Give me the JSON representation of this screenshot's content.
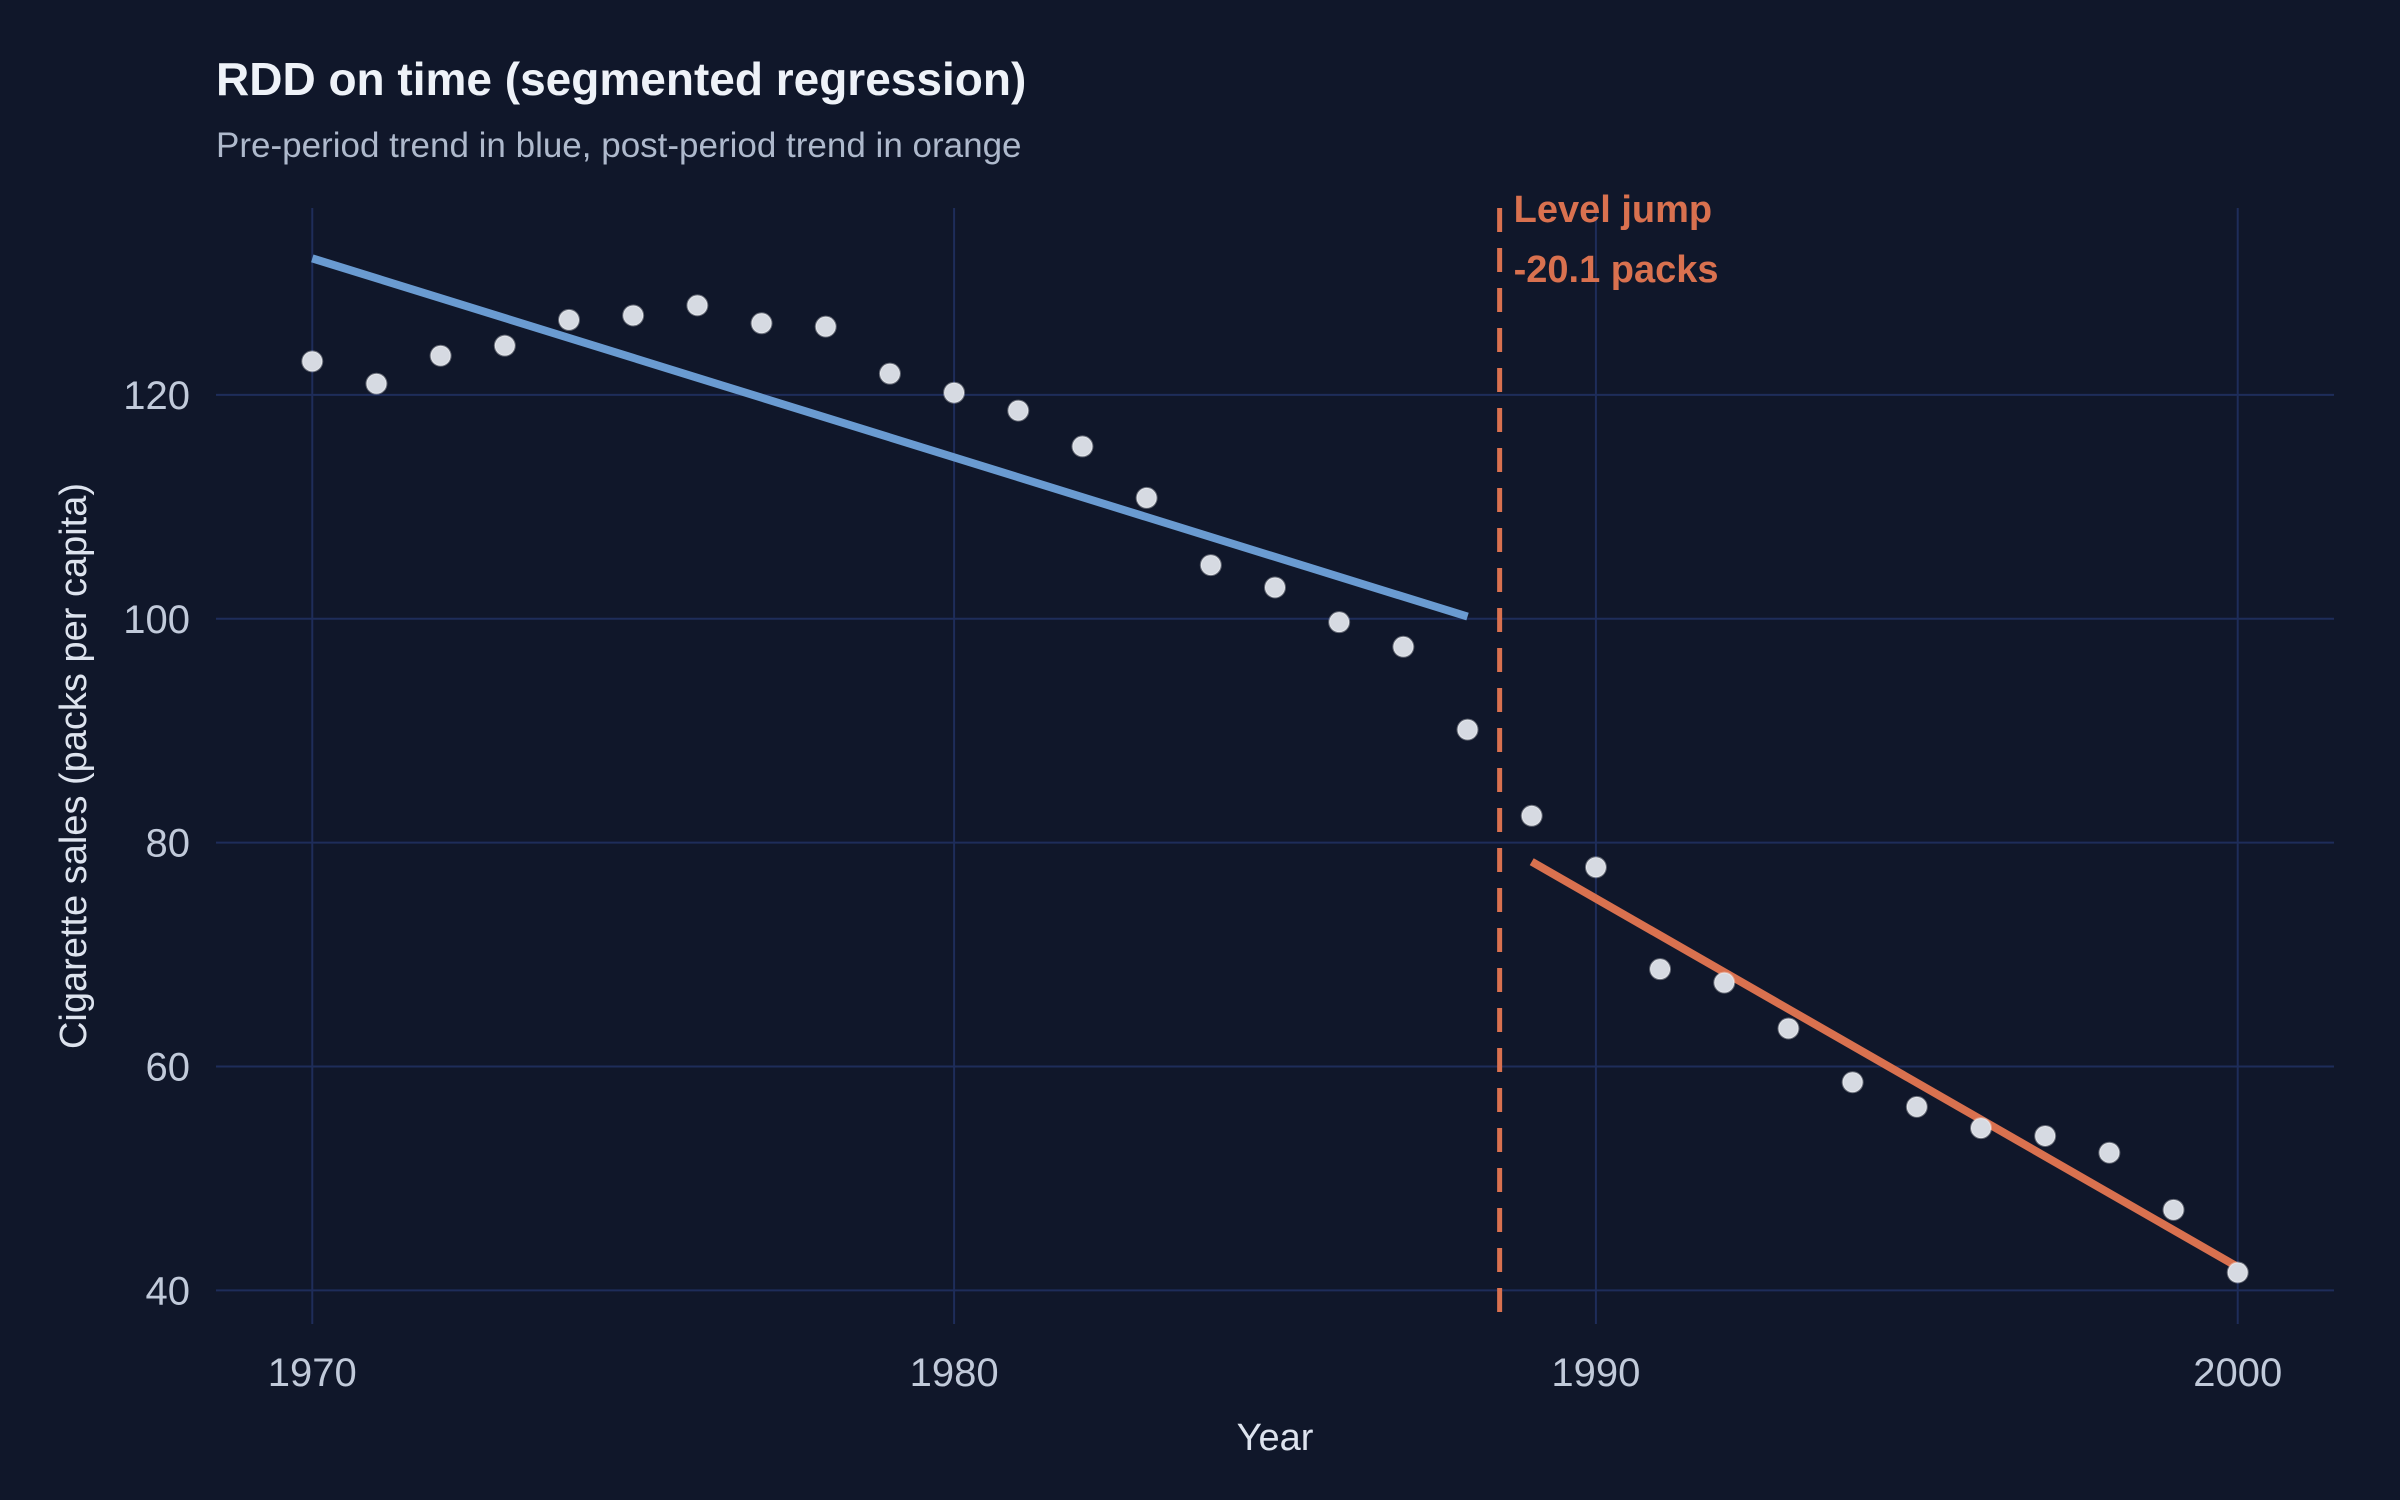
{
  "chart_data": {
    "type": "scatter",
    "title": "RDD on time (segmented regression)",
    "subtitle": "Pre-period trend in blue, post-period trend in orange",
    "xlabel": "Year",
    "ylabel": "Cigarette sales (packs per capita)",
    "xlim": [
      1968.5,
      2001.5
    ],
    "ylim": [
      37,
      136.7
    ],
    "x_ticks": [
      1970,
      1980,
      1990,
      2000
    ],
    "y_ticks": [
      40,
      60,
      80,
      100,
      120
    ],
    "grid": true,
    "legend": "none",
    "colors": {
      "background": "#10172a",
      "grid": "#1e2d5a",
      "points": "#d6dae2",
      "pre_trend": "#6a9bd1",
      "post_trend": "#d9714f"
    },
    "points": {
      "x": [
        1970,
        1971,
        1972,
        1973,
        1974,
        1975,
        1976,
        1977,
        1978,
        1979,
        1980,
        1981,
        1982,
        1983,
        1984,
        1985,
        1986,
        1987,
        1988,
        1989,
        1990,
        1991,
        1992,
        1993,
        1994,
        1995,
        1996,
        1997,
        1998,
        1999,
        2000
      ],
      "y": [
        123.0,
        121.0,
        123.5,
        124.4,
        126.7,
        127.1,
        128.0,
        126.4,
        126.1,
        121.9,
        120.2,
        118.6,
        115.4,
        110.8,
        104.8,
        102.8,
        99.7,
        97.5,
        90.1,
        82.4,
        77.8,
        68.7,
        67.5,
        63.4,
        58.6,
        56.4,
        54.5,
        53.8,
        52.3,
        47.2,
        41.6
      ]
    },
    "series": [
      {
        "x": [
          1970,
          1988
        ],
        "y": [
          132.2,
          100.2
        ]
      },
      {
        "x": [
          1989,
          2000
        ],
        "y": [
          78.3,
          42.1
        ]
      }
    ],
    "cutoff_x": 1988.5,
    "annotation": {
      "line1": "Level jump",
      "line2": "-20.1 packs"
    }
  }
}
